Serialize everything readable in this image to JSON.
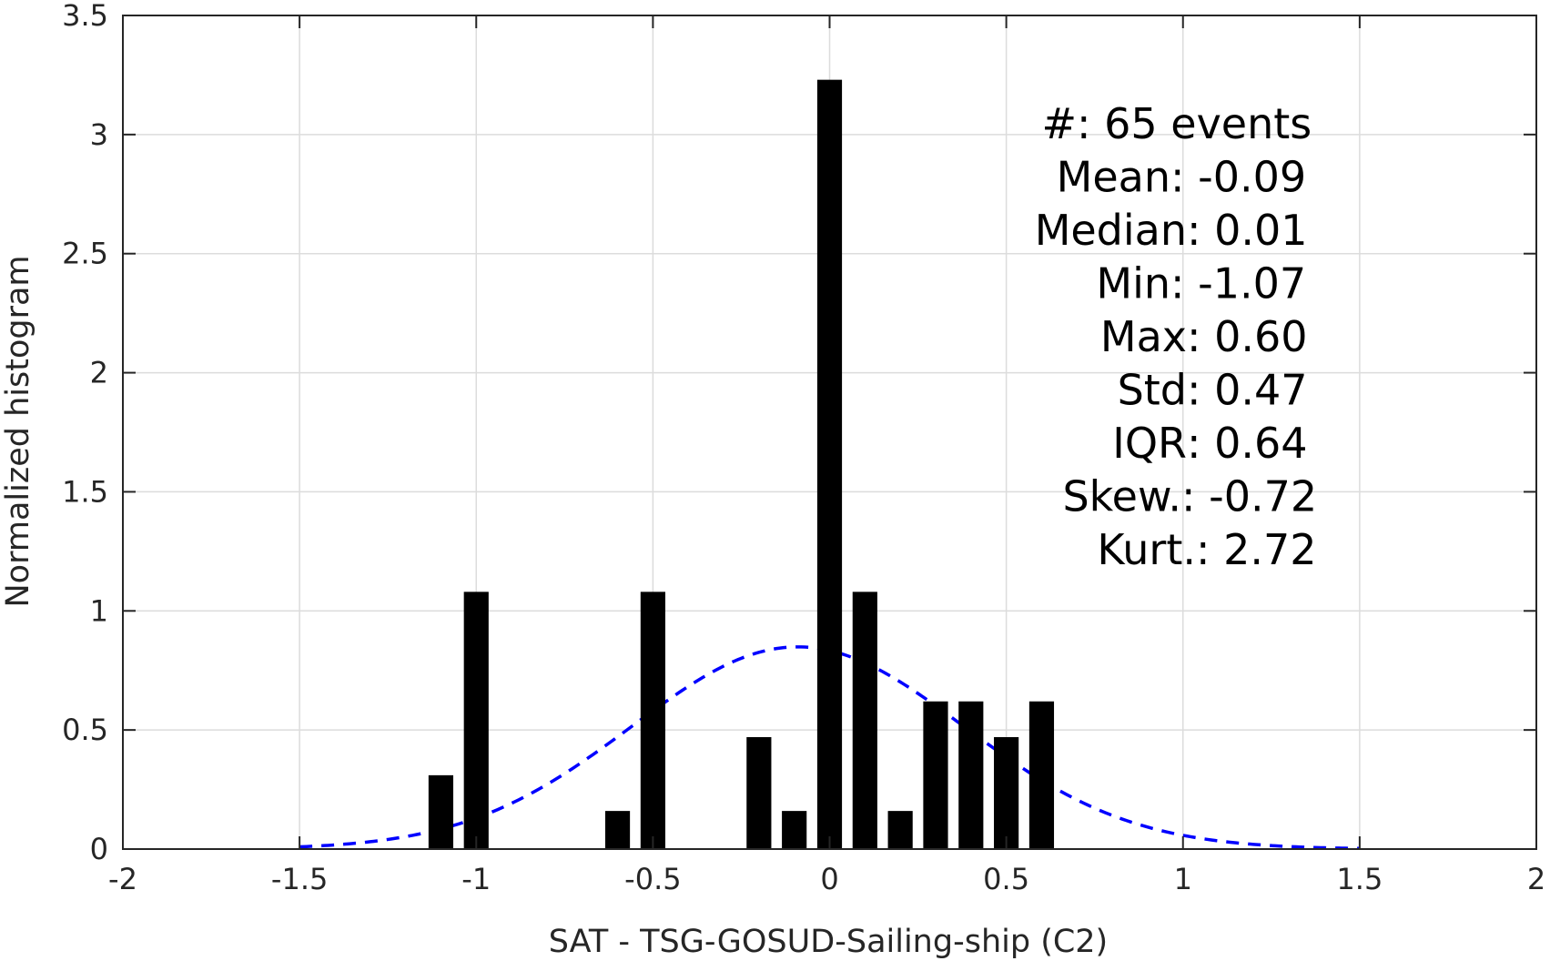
{
  "chart_data": {
    "type": "bar",
    "title": "",
    "xlabel": "SAT - TSG-GOSUD-Sailing-ship (C2)",
    "ylabel": "Normalized histogram",
    "xlim": [
      -2,
      2
    ],
    "ylim": [
      0,
      3.5
    ],
    "grid": true,
    "xticks": [
      -2,
      -1.5,
      -1,
      -0.5,
      0,
      0.5,
      1,
      1.5,
      2
    ],
    "xtick_labels": [
      "-2",
      "-1.5",
      "-1",
      "-0.5",
      "0",
      "0.5",
      "1",
      "1.5",
      "2"
    ],
    "yticks": [
      0,
      0.5,
      1,
      1.5,
      2,
      2.5,
      3,
      3.5
    ],
    "ytick_labels": [
      "0",
      "0.5",
      "1",
      "1.5",
      "2",
      "2.5",
      "3",
      "3.5"
    ],
    "bar_color": "#000000",
    "bar_width": 0.07,
    "bars": [
      {
        "x": -1.1,
        "y": 0.31
      },
      {
        "x": -1.0,
        "y": 1.08
      },
      {
        "x": -0.6,
        "y": 0.16
      },
      {
        "x": -0.5,
        "y": 1.08
      },
      {
        "x": -0.2,
        "y": 0.47
      },
      {
        "x": -0.1,
        "y": 0.16
      },
      {
        "x": 0.0,
        "y": 3.23
      },
      {
        "x": 0.1,
        "y": 1.08
      },
      {
        "x": 0.2,
        "y": 0.16
      },
      {
        "x": 0.3,
        "y": 0.62
      },
      {
        "x": 0.4,
        "y": 0.62
      },
      {
        "x": 0.5,
        "y": 0.47
      },
      {
        "x": 0.6,
        "y": 0.62
      }
    ],
    "fit_curve": {
      "style": "dashed",
      "color": "#0000ff",
      "mean": -0.09,
      "std": 0.47,
      "x_range": [
        -1.5,
        1.5
      ]
    },
    "annotations": [
      {
        "left": "#  ",
        "right": ": 65 events"
      },
      {
        "left": "Mean ",
        "right": ": -0.09"
      },
      {
        "left": "Median ",
        "right": ": 0.01"
      },
      {
        "left": "Min ",
        "right": ": -1.07"
      },
      {
        "left": "Max ",
        "right": ": 0.60"
      },
      {
        "left": "Std ",
        "right": ": 0.47"
      },
      {
        "left": "IQR ",
        "right": ": 0.64"
      },
      {
        "left": "Skew. ",
        "right": ": -0.72"
      },
      {
        "left": "Kurt. ",
        "right": ": 2.72"
      }
    ]
  }
}
